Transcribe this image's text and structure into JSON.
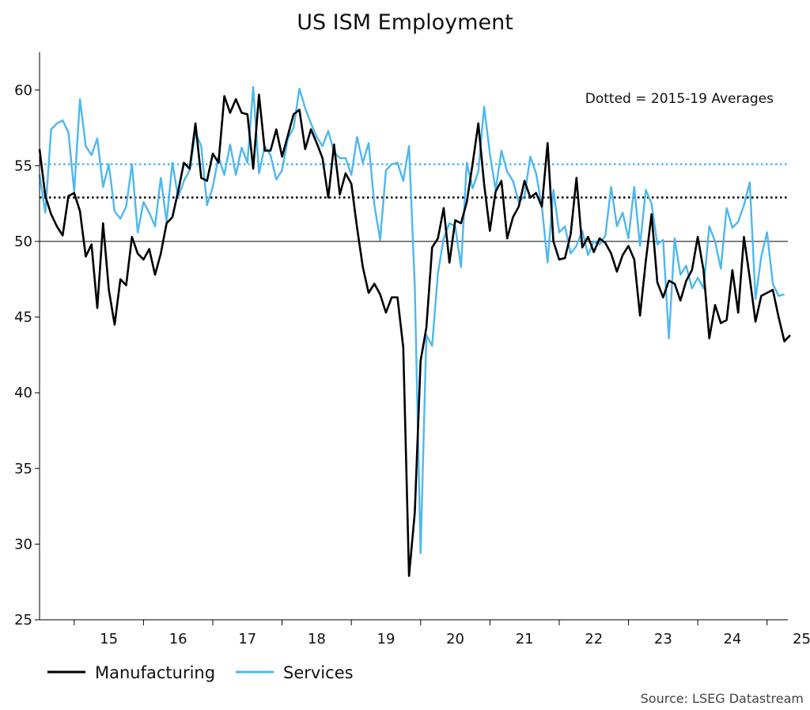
{
  "chart_data": {
    "type": "line",
    "title": "US ISM Employment",
    "annotation": "Dotted = 2015-19 Averages",
    "source": "Source: LSEG Datastream",
    "x_range": [
      2014.5,
      2025.3
    ],
    "ylim": [
      25,
      62.5
    ],
    "y_ticks": [
      25,
      30,
      35,
      40,
      45,
      50,
      55,
      60
    ],
    "x_tick_labels": [
      "15",
      "16",
      "17",
      "18",
      "19",
      "20",
      "21",
      "22",
      "23",
      "24",
      "25"
    ],
    "x_boundaries": [
      2015,
      2016,
      2017,
      2018,
      2019,
      2020,
      2021,
      2022,
      2023,
      2024,
      2025
    ],
    "reference_line": 50,
    "averages": [
      {
        "name": "Manufacturing 2015-19 average",
        "value": 52.9,
        "color": "#000000"
      },
      {
        "name": "Services 2015-19 average",
        "value": 55.1,
        "color": "#4db8ef"
      }
    ],
    "series": [
      {
        "name": "Manufacturing",
        "color": "#000000",
        "start": 2014.5,
        "step": 0.08333,
        "values": [
          56.1,
          53.0,
          51.8,
          51.0,
          50.4,
          53.0,
          53.2,
          52.0,
          49.0,
          49.8,
          45.6,
          51.2,
          46.8,
          44.5,
          47.5,
          47.1,
          50.3,
          49.2,
          48.8,
          49.5,
          47.8,
          49.2,
          51.2,
          51.6,
          53.3,
          55.2,
          54.8,
          57.8,
          54.2,
          54.0,
          55.8,
          55.2,
          59.6,
          58.5,
          59.4,
          58.5,
          58.4,
          54.8,
          59.7,
          56.0,
          56.0,
          57.4,
          55.6,
          57.0,
          58.4,
          58.7,
          56.1,
          57.4,
          56.5,
          55.5,
          52.9,
          56.4,
          53.1,
          54.5,
          53.8,
          50.9,
          48.3,
          46.6,
          47.2,
          46.5,
          45.3,
          46.3,
          46.3,
          43.0,
          27.9,
          32.1,
          42.1,
          44.3,
          49.6,
          50.2,
          52.2,
          48.6,
          51.4,
          51.2,
          52.6,
          55.1,
          57.8,
          53.8,
          50.7,
          53.3,
          54.0,
          50.2,
          51.6,
          52.3,
          54.0,
          52.9,
          53.2,
          52.3,
          56.5,
          50.0,
          48.8,
          48.9,
          50.5,
          54.2,
          49.6,
          50.3,
          49.3,
          50.2,
          49.9,
          49.2,
          48.0,
          49.1,
          49.7,
          48.8,
          45.1,
          48.7,
          51.8,
          47.3,
          46.3,
          47.4,
          47.2,
          46.1,
          47.4,
          48.1,
          50.3,
          48.1,
          43.6,
          45.8,
          44.6,
          44.8,
          48.1,
          45.3,
          50.3,
          47.6,
          44.7,
          46.4,
          46.6,
          46.8,
          45.0,
          43.4,
          43.8
        ]
      },
      {
        "name": "Services",
        "color": "#4db8ef",
        "start": 2014.5,
        "step": 0.08333,
        "values": [
          54.4,
          51.9,
          57.4,
          57.8,
          58.0,
          57.2,
          53.3,
          59.4,
          56.3,
          55.7,
          56.8,
          53.6,
          55.1,
          52.0,
          51.5,
          52.3,
          55.1,
          50.6,
          52.6,
          51.9,
          51.0,
          54.2,
          51.3,
          55.2,
          52.9,
          54.0,
          54.7,
          57.2,
          56.3,
          52.4,
          53.6,
          55.6,
          54.4,
          56.4,
          54.4,
          56.2,
          55.2,
          60.2,
          54.5,
          56.3,
          55.7,
          54.1,
          54.7,
          56.8,
          57.5,
          60.1,
          58.8,
          57.8,
          56.9,
          56.3,
          57.3,
          55.9,
          55.5,
          55.5,
          54.4,
          56.9,
          55.2,
          56.5,
          52.4,
          50.1,
          54.7,
          55.1,
          55.2,
          54.0,
          56.3,
          47.0,
          29.4,
          43.8,
          43.1,
          47.9,
          50.2,
          51.2,
          51.0,
          48.3,
          55.2,
          53.5,
          54.6,
          58.9,
          55.8,
          53.4,
          56.0,
          54.6,
          54.0,
          52.6,
          53.0,
          55.6,
          54.5,
          52.3,
          48.6,
          53.4,
          50.6,
          51.0,
          49.2,
          49.7,
          50.7,
          49.1,
          50.0,
          49.8,
          50.4,
          53.6,
          51.0,
          51.9,
          50.2,
          53.6,
          49.7,
          53.4,
          52.5,
          49.8,
          50.1,
          43.6,
          50.2,
          47.8,
          48.4,
          46.9,
          47.6,
          46.9,
          51.0,
          50.0,
          48.2,
          52.2,
          50.9,
          51.3,
          52.4,
          53.9,
          46.2,
          49.0,
          50.6,
          47.2,
          46.4,
          46.5
        ]
      }
    ]
  }
}
